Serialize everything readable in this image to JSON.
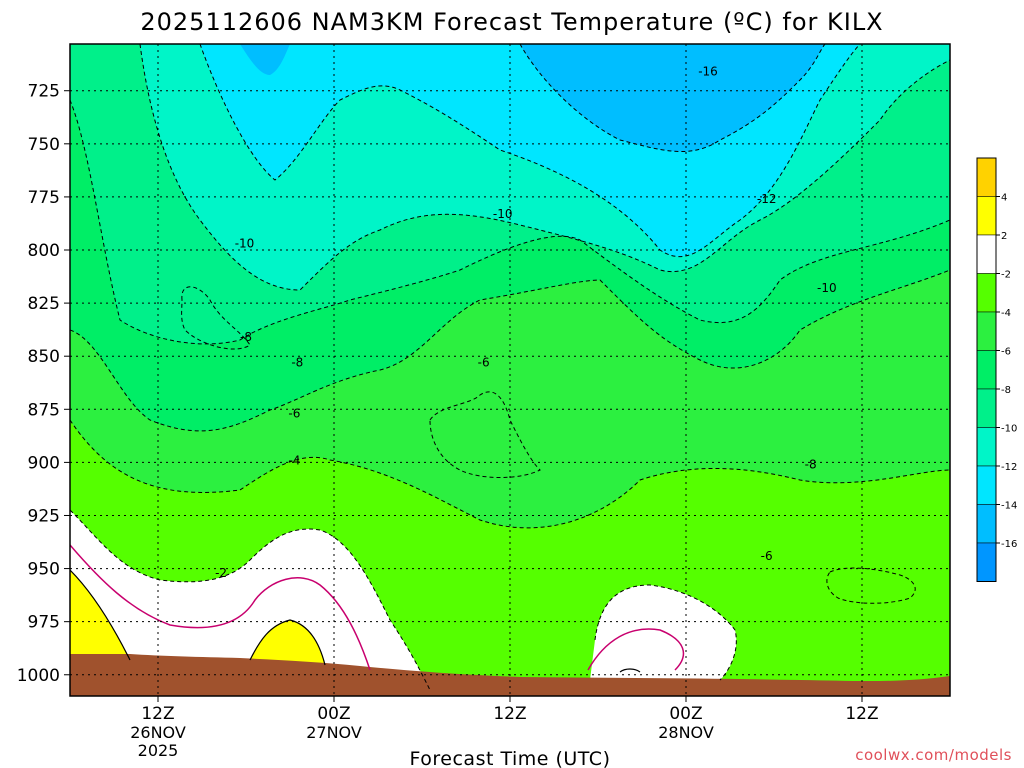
{
  "chart_data": {
    "type": "contour",
    "title": "2025112606 NAM3KM Forecast Temperature (ºC) for KILX",
    "xlabel": "Forecast Time (UTC)",
    "ylabel": "",
    "x_ticks": [
      {
        "hour": 6,
        "label": "12Z",
        "date": "26NOV",
        "year": "2025"
      },
      {
        "hour": 18,
        "label": "00Z",
        "date": "27NOV",
        "year": ""
      },
      {
        "hour": 30,
        "label": "12Z",
        "date": "",
        "year": ""
      },
      {
        "hour": 42,
        "label": "00Z",
        "date": "28NOV",
        "year": ""
      },
      {
        "hour": 54,
        "label": "12Z",
        "date": "",
        "year": ""
      }
    ],
    "xlim": [
      0,
      60
    ],
    "y_ticks": [
      725,
      750,
      775,
      800,
      825,
      850,
      875,
      900,
      925,
      950,
      975,
      1000
    ],
    "ylim": [
      1010,
      703
    ],
    "colorbar": {
      "bins": [
        {
          "from": 4,
          "to": 6,
          "color": "#ffd200"
        },
        {
          "from": 2,
          "to": 4,
          "color": "#ffff00"
        },
        {
          "from": -2,
          "to": 2,
          "color": "#ffffff"
        },
        {
          "from": -4,
          "to": -2,
          "color": "#55ff00"
        },
        {
          "from": -6,
          "to": -4,
          "color": "#2cf040"
        },
        {
          "from": -8,
          "to": -6,
          "color": "#00ee66"
        },
        {
          "from": -10,
          "to": -8,
          "color": "#00f08a"
        },
        {
          "from": -12,
          "to": -10,
          "color": "#00f5c8"
        },
        {
          "from": -14,
          "to": -12,
          "color": "#00e6ff"
        },
        {
          "from": -16,
          "to": -14,
          "color": "#00beff"
        },
        {
          "from": -18,
          "to": -16,
          "color": "#0096ff"
        }
      ],
      "labels": [
        "4",
        "2",
        "-2",
        "-4",
        "-6",
        "-8",
        "-10",
        "-12",
        "-14",
        "-16"
      ]
    },
    "contour_labels": [
      {
        "text": "-16",
        "hour": 43.5,
        "p": 716
      },
      {
        "text": "-12",
        "hour": 47.5,
        "p": 776
      },
      {
        "text": "-10",
        "hour": 29.5,
        "p": 783
      },
      {
        "text": "-10",
        "hour": 11.9,
        "p": 797
      },
      {
        "text": "-10",
        "hour": 51.6,
        "p": 818
      },
      {
        "text": "-8",
        "hour": 12.0,
        "p": 841
      },
      {
        "text": "-8",
        "hour": 15.5,
        "p": 853
      },
      {
        "text": "-6",
        "hour": 28.2,
        "p": 853
      },
      {
        "text": "-6",
        "hour": 15.3,
        "p": 877
      },
      {
        "text": "-4",
        "hour": 15.3,
        "p": 899
      },
      {
        "text": "-8",
        "hour": 50.5,
        "p": 901
      },
      {
        "text": "-6",
        "hour": 47.5,
        "p": 944
      },
      {
        "text": "-2",
        "hour": 10.3,
        "p": 952
      }
    ],
    "grid": true,
    "credit": "coolwx.com/models"
  }
}
